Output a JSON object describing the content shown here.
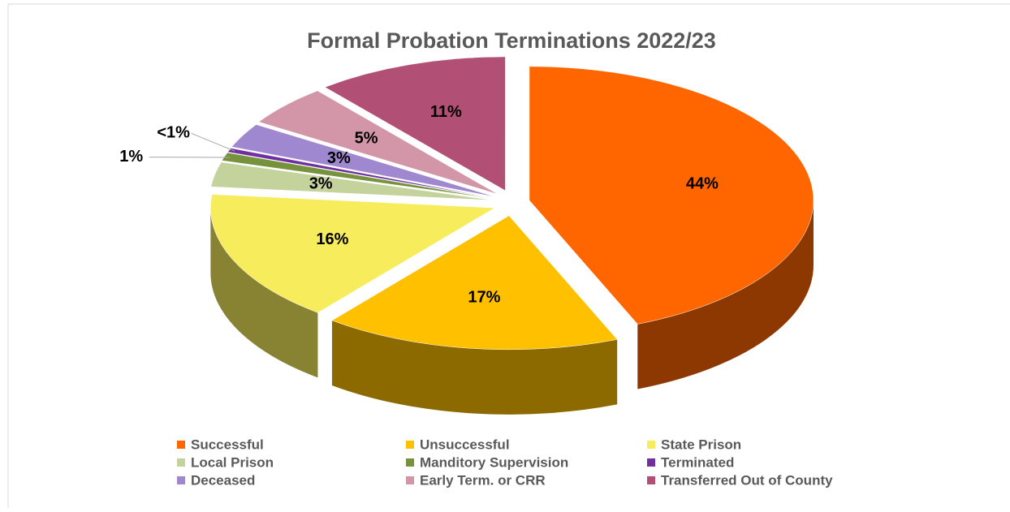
{
  "chart_data": {
    "type": "pie",
    "title": "Formal Probation Terminations 2022/23",
    "categories": [
      "Successful",
      "Unsuccessful",
      "State Prison",
      "Local Prison",
      "Manditory Supervision",
      "Terminated",
      "Deceased",
      "Early Term. or CRR",
      "Transferred Out of County"
    ],
    "values": [
      44,
      17,
      16,
      3,
      1,
      0.5,
      3,
      5,
      11
    ],
    "value_labels": [
      "44%",
      "17%",
      "16%",
      "3%",
      "1%",
      "<1%",
      "3%",
      "5%",
      "11%"
    ],
    "colors": [
      "#ff6600",
      "#ffc000",
      "#f7ec5c",
      "#c4d29c",
      "#76923c",
      "#7030a0",
      "#9f88cf",
      "#d396a8",
      "#b24f75"
    ],
    "legend": "bottom"
  }
}
